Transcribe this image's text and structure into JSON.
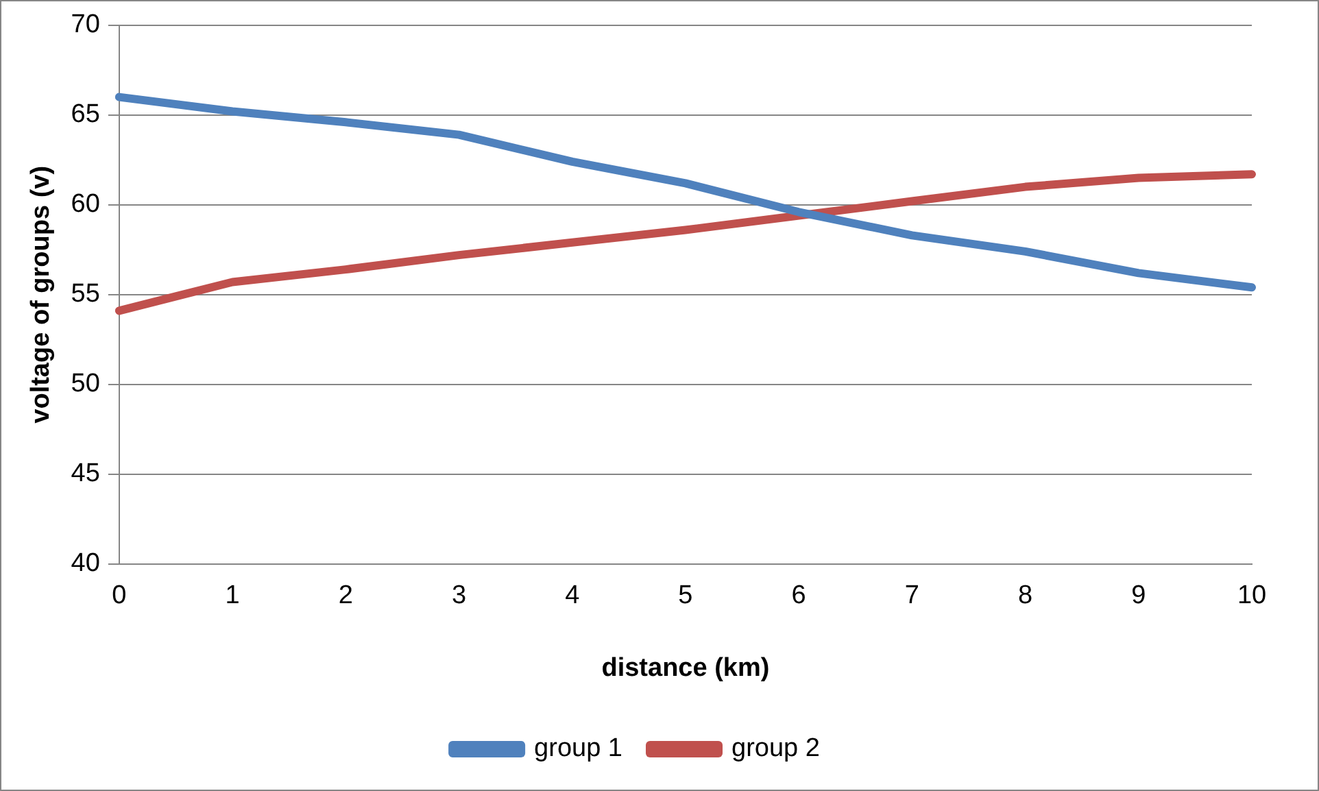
{
  "chart_data": {
    "type": "line",
    "xlabel": "distance (km)",
    "ylabel": "voltage of groups (v)",
    "categories": [
      "0",
      "1",
      "2",
      "3",
      "4",
      "5",
      "6",
      "7",
      "8",
      "9",
      "10"
    ],
    "series": [
      {
        "name": "group 1",
        "color": "#4f81bd",
        "values": [
          66,
          65.2,
          64.6,
          63.9,
          62.4,
          61.2,
          59.6,
          58.3,
          57.4,
          56.2,
          55.4
        ]
      },
      {
        "name": "group 2",
        "color": "#c0504d",
        "values": [
          54.1,
          55.7,
          56.4,
          57.2,
          57.9,
          58.6,
          59.4,
          60.2,
          61,
          61.5,
          61.7
        ]
      }
    ],
    "ylim": [
      40,
      70
    ],
    "yticks": [
      40,
      45,
      50,
      55,
      60,
      65,
      70
    ],
    "grid": "y",
    "legend": "bottom",
    "marker": "none",
    "line_style": "solid"
  }
}
